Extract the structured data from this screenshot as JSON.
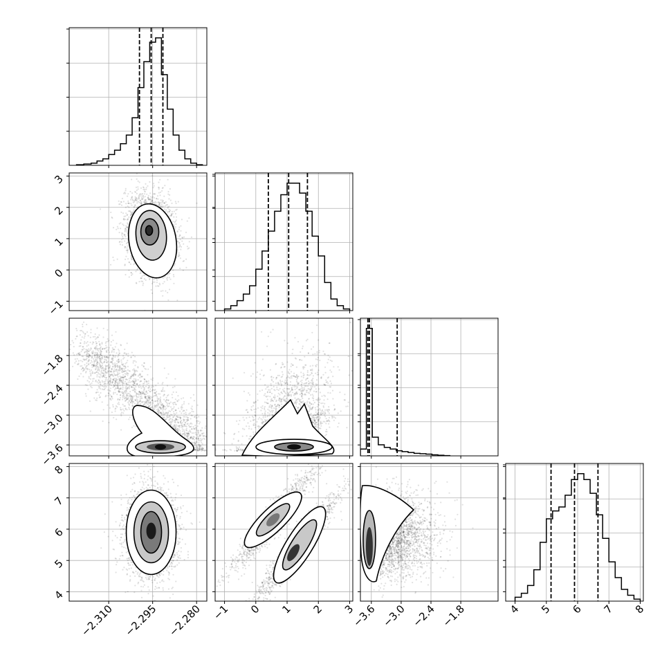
{
  "chart_data": {
    "type": "corner",
    "n_params": 4,
    "grid": true,
    "parameters": [
      {
        "index": 0,
        "range": [
          -2.3235,
          -2.2765
        ],
        "xticks": [
          "−2.310",
          "−2.295",
          "−2.280"
        ],
        "xtick_values": [
          -2.31,
          -2.295,
          -2.28
        ]
      },
      {
        "index": 1,
        "range": [
          -1.3,
          3.1
        ],
        "xticks": [
          "−1",
          "0",
          "1",
          "2",
          "3"
        ],
        "xtick_values": [
          -1,
          0,
          1,
          2,
          3
        ],
        "yticks": [
          "−1",
          "0",
          "1",
          "2",
          "3"
        ]
      },
      {
        "index": 2,
        "range": [
          -3.82,
          -1.05
        ],
        "xticks": [
          "−3.6",
          "−3.0",
          "−2.4",
          "−1.8"
        ],
        "xtick_values": [
          -3.6,
          -3.0,
          -2.4,
          -1.8
        ],
        "yticks": [
          "−3.6",
          "−3.0",
          "−2.4",
          "−1.8"
        ]
      },
      {
        "index": 3,
        "range": [
          3.7,
          8.1
        ],
        "xticks": [
          "4",
          "5",
          "6",
          "7",
          "8"
        ],
        "xtick_values": [
          4,
          5,
          6,
          7,
          8
        ],
        "yticks": [
          "4",
          "5",
          "6",
          "7",
          "8"
        ]
      }
    ],
    "histograms": [
      {
        "param": 0,
        "quantiles": [
          -2.2995,
          -2.2955,
          -2.2915
        ],
        "bin_edges": [
          -2.321,
          -2.3185,
          -2.316,
          -2.314,
          -2.312,
          -2.31,
          -2.308,
          -2.306,
          -2.304,
          -2.302,
          -2.3,
          -2.298,
          -2.296,
          -2.294,
          -2.292,
          -2.29,
          -2.288,
          -2.286,
          -2.284,
          -2.282,
          -2.28,
          -2.278
        ],
        "counts": [
          0.3,
          0.6,
          1,
          2,
          3,
          5,
          7,
          10,
          14,
          22,
          36,
          48,
          57,
          59,
          42,
          26,
          14,
          7,
          3,
          1,
          0.3
        ]
      },
      {
        "param": 1,
        "quantiles": [
          0.4,
          1.05,
          1.65
        ],
        "bin_edges": [
          -1.0,
          -0.8,
          -0.6,
          -0.4,
          -0.2,
          0.0,
          0.2,
          0.4,
          0.6,
          0.8,
          1.0,
          1.2,
          1.4,
          1.6,
          1.8,
          2.0,
          2.2,
          2.4,
          2.6,
          2.8,
          3.0
        ],
        "counts": [
          1,
          3,
          6,
          10,
          15,
          25,
          36,
          48,
          60,
          70,
          77,
          77,
          71,
          60,
          45,
          33,
          17,
          7,
          3,
          1
        ]
      },
      {
        "param": 2,
        "quantiles": [
          -3.67,
          -3.64,
          -3.08
        ],
        "bin_edges": [
          -3.82,
          -3.7,
          -3.58,
          -3.46,
          -3.34,
          -3.22,
          -3.1,
          -2.98,
          -2.86,
          -2.74,
          -2.62,
          -2.5,
          -2.38,
          -2.26,
          -2.14,
          -2.02
        ],
        "counts": [
          8,
          150,
          22,
          13,
          10,
          8,
          6,
          5,
          4,
          3,
          2.5,
          2,
          1.2,
          0.7,
          0.3
        ]
      },
      {
        "param": 3,
        "quantiles": [
          5.15,
          5.9,
          6.65
        ],
        "bin_edges": [
          4.0,
          4.2,
          4.4,
          4.6,
          4.8,
          5.0,
          5.2,
          5.4,
          5.6,
          5.8,
          6.0,
          6.2,
          6.4,
          6.6,
          6.8,
          7.0,
          7.2,
          7.4,
          7.6,
          7.8,
          8.0
        ],
        "counts": [
          2,
          4,
          8,
          16,
          30,
          42,
          46,
          48,
          54,
          62,
          65,
          62,
          55,
          44,
          32,
          20,
          12,
          6,
          3,
          1
        ]
      }
    ],
    "scatter_panels": [
      {
        "row": 1,
        "col": 0,
        "center": [
          -2.2955,
          1.15
        ],
        "cov": [
          [
            1.85e-05,
            -0.00045
          ],
          [
            -0.00045,
            0.42
          ]
        ],
        "n": 2600
      },
      {
        "row": 2,
        "col": 0,
        "note": "strong negative correlation, piled up near lower bound"
      },
      {
        "row": 2,
        "col": 1,
        "note": "weak positive correlation, piled up near lower bound"
      },
      {
        "row": 3,
        "col": 0,
        "center": [
          -2.2955,
          5.9
        ],
        "cov": [
          [
            1.85e-05,
            0.0
          ],
          [
            0.0,
            0.5
          ]
        ],
        "n": 2600
      },
      {
        "row": 3,
        "col": 1,
        "note": "bimodal elongated positive correlation"
      },
      {
        "row": 3,
        "col": 2,
        "note": "concentrated near lower bound of param 2"
      }
    ]
  }
}
